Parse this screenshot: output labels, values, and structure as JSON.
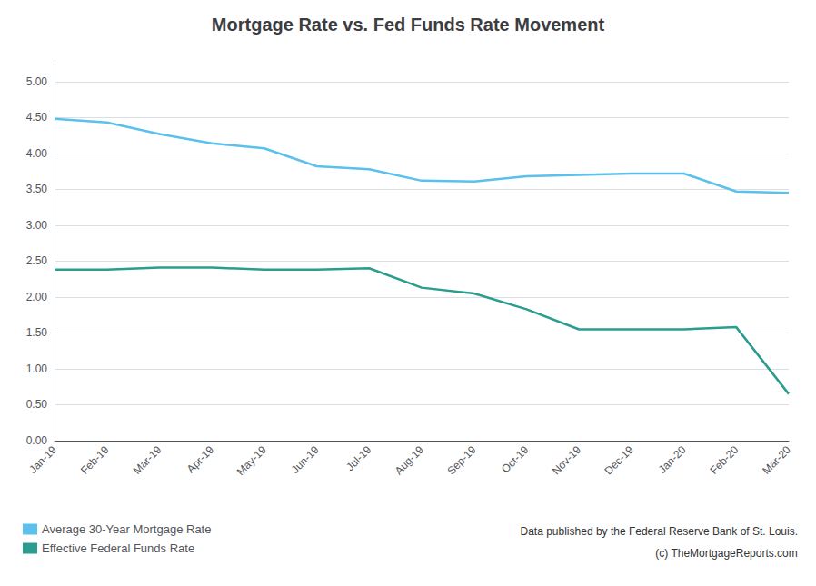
{
  "chart_data": {
    "type": "line",
    "title": "Mortgage Rate vs. Fed Funds Rate Movement",
    "categories": [
      "Jan-19",
      "Feb-19",
      "Mar-19",
      "Apr-19",
      "May-19",
      "Jun-19",
      "Jul-19",
      "Aug-19",
      "Sep-19",
      "Oct-19",
      "Nov-19",
      "Dec-19",
      "Jan-20",
      "Feb-20",
      "Mar-20"
    ],
    "series": [
      {
        "name": "Average 30-Year Mortgage Rate",
        "color": "#5bc0eb",
        "values": [
          4.48,
          4.43,
          4.27,
          4.14,
          4.07,
          3.82,
          3.78,
          3.62,
          3.61,
          3.68,
          3.7,
          3.72,
          3.72,
          3.47,
          3.45
        ]
      },
      {
        "name": "Effective Federal Funds Rate",
        "color": "#2a9d8f",
        "values": [
          2.38,
          2.38,
          2.41,
          2.41,
          2.38,
          2.38,
          2.4,
          2.13,
          2.05,
          1.83,
          1.55,
          1.55,
          1.55,
          1.58,
          0.65
        ]
      }
    ],
    "ylim": [
      0,
      5.25
    ],
    "yticks": [
      {
        "value": 0.0,
        "label": "0.00"
      },
      {
        "value": 0.5,
        "label": "0.50"
      },
      {
        "value": 1.0,
        "label": "1.00"
      },
      {
        "value": 1.5,
        "label": "1.50"
      },
      {
        "value": 2.0,
        "label": "2.00"
      },
      {
        "value": 2.5,
        "label": "2.50"
      },
      {
        "value": 3.0,
        "label": "3.00"
      },
      {
        "value": 3.5,
        "label": "3.50"
      },
      {
        "value": 4.0,
        "label": "4.00"
      },
      {
        "value": 4.5,
        "label": "4.50"
      },
      {
        "value": 5.0,
        "label": "5.00"
      }
    ],
    "grid": true,
    "legend": "lower left",
    "annotations": [
      "Data published by the Federal Reserve Bank of St. Louis.",
      "(c) TheMortgageReports.com"
    ]
  }
}
